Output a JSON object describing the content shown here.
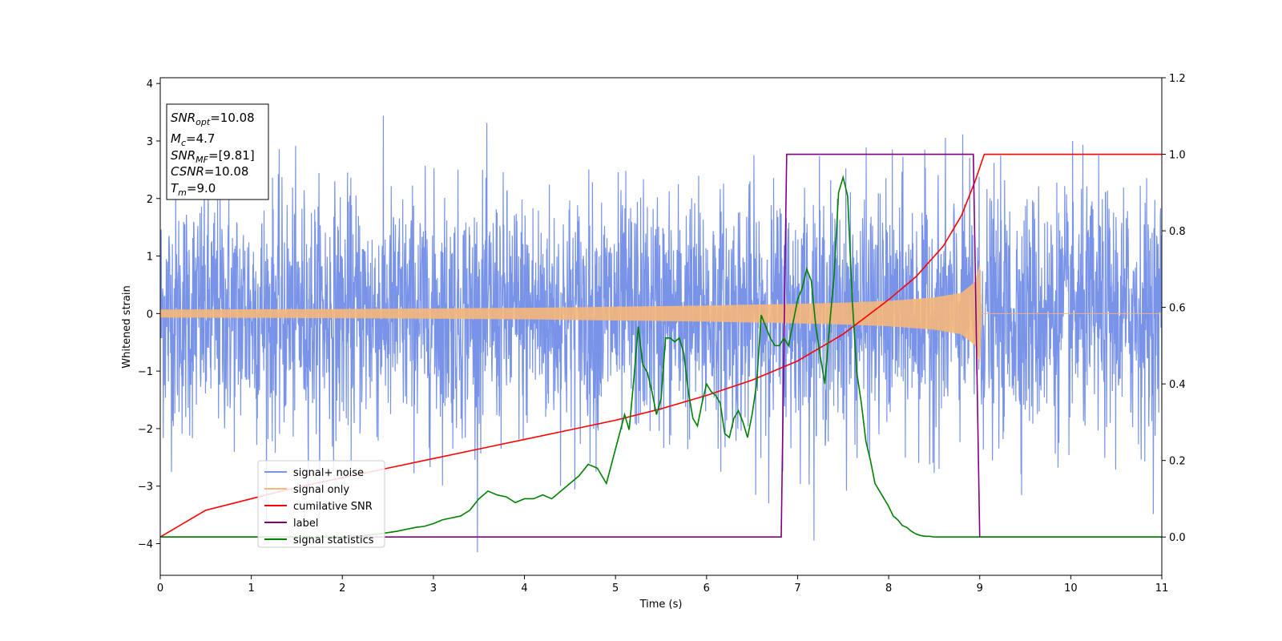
{
  "chart_data": {
    "type": "line",
    "xlabel": "Time (s)",
    "ylabel": "Whitened strain",
    "xlim": [
      0,
      11
    ],
    "ylim_left": [
      -4.55,
      4.1
    ],
    "ylim_right": [
      -0.1,
      1.2
    ],
    "x_ticks": [
      "0",
      "1",
      "2",
      "3",
      "4",
      "5",
      "6",
      "7",
      "8",
      "9",
      "10",
      "11"
    ],
    "y_left_ticks": [
      "−4",
      "−3",
      "−2",
      "−1",
      "0",
      "1",
      "2",
      "3",
      "4"
    ],
    "y_right_ticks": [
      "0.0",
      "0.2",
      "0.4",
      "0.6",
      "0.8",
      "1.0",
      "1.2"
    ],
    "grid": false,
    "legend_position": "lower-left",
    "info_box": {
      "snr_opt_label": "SNR",
      "snr_opt_sub": "opt",
      "snr_opt_value": "=10.08",
      "mc_label": "M",
      "mc_sub": "c",
      "mc_value": "=4.7",
      "snr_mf_label": "SNR",
      "snr_mf_sub": "MF",
      "snr_mf_value": "=[9.81]",
      "csnr_label": "CSNR",
      "csnr_value": "=10.08",
      "tm_label": "T",
      "tm_sub": "m",
      "tm_value": "=9.0"
    },
    "series": [
      {
        "name": "signal+ noise",
        "color": "#7893e8",
        "axis": "left",
        "description": "whitened noise plus signal, roughly amplitude ±2 to ±3.7 across 0–11 s"
      },
      {
        "name": "signal only",
        "color": "#f5b77a",
        "axis": "left",
        "envelope": {
          "x": [
            0,
            1,
            2,
            3,
            4,
            5,
            6,
            7,
            7.5,
            8,
            8.5,
            8.8,
            8.95,
            9.0,
            9.02,
            11
          ],
          "amplitude": [
            0.07,
            0.075,
            0.08,
            0.09,
            0.1,
            0.12,
            0.14,
            0.17,
            0.19,
            0.22,
            0.28,
            0.36,
            0.55,
            0.85,
            0.0,
            0.0
          ]
        }
      },
      {
        "name": "cumilative SNR",
        "color": "#ff0000",
        "axis": "right",
        "x": [
          0,
          0.5,
          1,
          1.5,
          2,
          2.5,
          3,
          3.5,
          4,
          4.5,
          5,
          5.5,
          6,
          6.5,
          7,
          7.5,
          8,
          8.3,
          8.6,
          8.8,
          8.95,
          9.05,
          11
        ],
        "y": [
          0.0,
          0.07,
          0.1,
          0.13,
          0.155,
          0.18,
          0.205,
          0.23,
          0.255,
          0.28,
          0.305,
          0.335,
          0.37,
          0.41,
          0.46,
          0.53,
          0.62,
          0.68,
          0.76,
          0.84,
          0.93,
          1.0,
          1.0
        ]
      },
      {
        "name": "label",
        "color": "#800080",
        "axis": "right",
        "x": [
          0,
          6.82,
          6.88,
          8.93,
          9.0,
          11
        ],
        "y": [
          0,
          0,
          1,
          1,
          0,
          0
        ]
      },
      {
        "name": "signal statistics",
        "color": "#008000",
        "axis": "right",
        "x": [
          0,
          0.5,
          1,
          1.5,
          2,
          2.2,
          2.4,
          2.6,
          2.8,
          2.9,
          3.0,
          3.1,
          3.2,
          3.3,
          3.4,
          3.5,
          3.6,
          3.7,
          3.8,
          3.9,
          4.0,
          4.1,
          4.2,
          4.3,
          4.4,
          4.5,
          4.6,
          4.7,
          4.8,
          4.9,
          5.0,
          5.1,
          5.15,
          5.2,
          5.25,
          5.3,
          5.35,
          5.4,
          5.45,
          5.5,
          5.55,
          5.6,
          5.65,
          5.7,
          5.75,
          5.8,
          5.85,
          5.9,
          5.95,
          6.0,
          6.05,
          6.1,
          6.15,
          6.2,
          6.25,
          6.3,
          6.35,
          6.4,
          6.45,
          6.5,
          6.55,
          6.6,
          6.65,
          6.7,
          6.75,
          6.8,
          6.85,
          6.9,
          6.95,
          7.0,
          7.05,
          7.1,
          7.15,
          7.2,
          7.25,
          7.3,
          7.35,
          7.4,
          7.45,
          7.5,
          7.55,
          7.6,
          7.65,
          7.7,
          7.75,
          7.8,
          7.85,
          7.9,
          7.95,
          8.0,
          8.05,
          8.1,
          8.15,
          8.2,
          8.25,
          8.3,
          8.35,
          8.4,
          8.45,
          8.5,
          8.55,
          8.6,
          8.7,
          8.8,
          8.9,
          9.0,
          9.5,
          10,
          10.5,
          11
        ],
        "y": [
          0.0,
          0.0,
          0.0,
          0.0,
          0.001,
          0.003,
          0.008,
          0.015,
          0.025,
          0.028,
          0.035,
          0.045,
          0.05,
          0.055,
          0.07,
          0.1,
          0.12,
          0.11,
          0.105,
          0.09,
          0.1,
          0.1,
          0.11,
          0.1,
          0.12,
          0.14,
          0.16,
          0.19,
          0.18,
          0.14,
          0.23,
          0.32,
          0.28,
          0.41,
          0.55,
          0.45,
          0.43,
          0.38,
          0.32,
          0.36,
          0.52,
          0.52,
          0.51,
          0.52,
          0.48,
          0.38,
          0.31,
          0.29,
          0.35,
          0.4,
          0.38,
          0.37,
          0.35,
          0.27,
          0.26,
          0.31,
          0.33,
          0.3,
          0.26,
          0.32,
          0.4,
          0.58,
          0.55,
          0.52,
          0.5,
          0.5,
          0.52,
          0.5,
          0.56,
          0.62,
          0.65,
          0.7,
          0.67,
          0.55,
          0.47,
          0.4,
          0.55,
          0.68,
          0.9,
          0.94,
          0.89,
          0.62,
          0.43,
          0.35,
          0.25,
          0.2,
          0.14,
          0.12,
          0.1,
          0.08,
          0.055,
          0.045,
          0.03,
          0.025,
          0.015,
          0.008,
          0.004,
          0.002,
          0.002,
          0.0,
          0.0,
          0.0,
          0.0,
          0.0,
          0.0,
          0.0,
          0.0,
          0.0,
          0.0,
          0.0
        ]
      }
    ]
  }
}
